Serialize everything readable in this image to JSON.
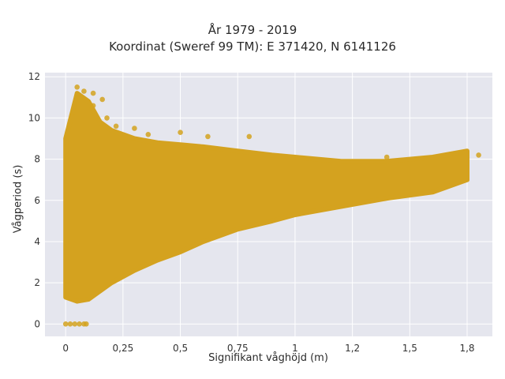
{
  "chart_data": {
    "type": "scatter",
    "title": "År 1979 - 2019",
    "subtitle": "Koordinat (Sweref 99 TM): E 371420, N 6141126",
    "xlabel": "Signifikant våghöjd (m)",
    "ylabel": "Vågperiod (s)",
    "xlim": [
      -0.09,
      1.86
    ],
    "ylim": [
      -0.6,
      12.2
    ],
    "x_ticks": [
      0,
      0.25,
      0.5,
      0.75,
      1,
      1.25,
      1.5,
      1.75
    ],
    "x_tick_labels": [
      "0",
      "0,25",
      "0,5",
      "0,75",
      "1",
      "1,2",
      "1,5",
      "1,8"
    ],
    "y_ticks": [
      0,
      2,
      4,
      6,
      8,
      10,
      12
    ],
    "y_tick_labels": [
      "0",
      "2",
      "4",
      "6",
      "8",
      "10",
      "12"
    ],
    "grid": true,
    "marker_color": "#D4A21F",
    "background_color": "#E5E6EE",
    "envelope": {
      "x": [
        0.0,
        0.05,
        0.1,
        0.15,
        0.2,
        0.3,
        0.4,
        0.5,
        0.6,
        0.75,
        0.9,
        1.0,
        1.2,
        1.4,
        1.6,
        1.75
      ],
      "y_low": [
        1.3,
        1.1,
        1.2,
        1.6,
        2.0,
        2.6,
        3.1,
        3.5,
        4.0,
        4.6,
        5.0,
        5.3,
        5.7,
        6.1,
        6.4,
        7.0
      ],
      "y_high": [
        9.0,
        11.2,
        10.8,
        9.8,
        9.4,
        9.0,
        8.8,
        8.7,
        8.6,
        8.4,
        8.2,
        8.1,
        7.9,
        7.9,
        8.1,
        8.4
      ]
    },
    "points": [
      {
        "x": 0.05,
        "y": 11.5
      },
      {
        "x": 0.08,
        "y": 11.3
      },
      {
        "x": 0.12,
        "y": 11.2
      },
      {
        "x": 0.16,
        "y": 10.9
      },
      {
        "x": 0.12,
        "y": 10.6
      },
      {
        "x": 0.18,
        "y": 10.0
      },
      {
        "x": 0.22,
        "y": 9.6
      },
      {
        "x": 0.3,
        "y": 9.5
      },
      {
        "x": 0.36,
        "y": 9.2
      },
      {
        "x": 0.5,
        "y": 9.3
      },
      {
        "x": 0.62,
        "y": 9.1
      },
      {
        "x": 0.8,
        "y": 9.1
      },
      {
        "x": 1.4,
        "y": 8.1
      },
      {
        "x": 1.72,
        "y": 8.3
      },
      {
        "x": 1.8,
        "y": 8.2
      },
      {
        "x": 0.0,
        "y": 0.0
      },
      {
        "x": 0.02,
        "y": 0.0
      },
      {
        "x": 0.04,
        "y": 0.0
      },
      {
        "x": 0.06,
        "y": 0.0
      },
      {
        "x": 0.08,
        "y": 0.0
      },
      {
        "x": 0.09,
        "y": 0.0
      }
    ]
  }
}
